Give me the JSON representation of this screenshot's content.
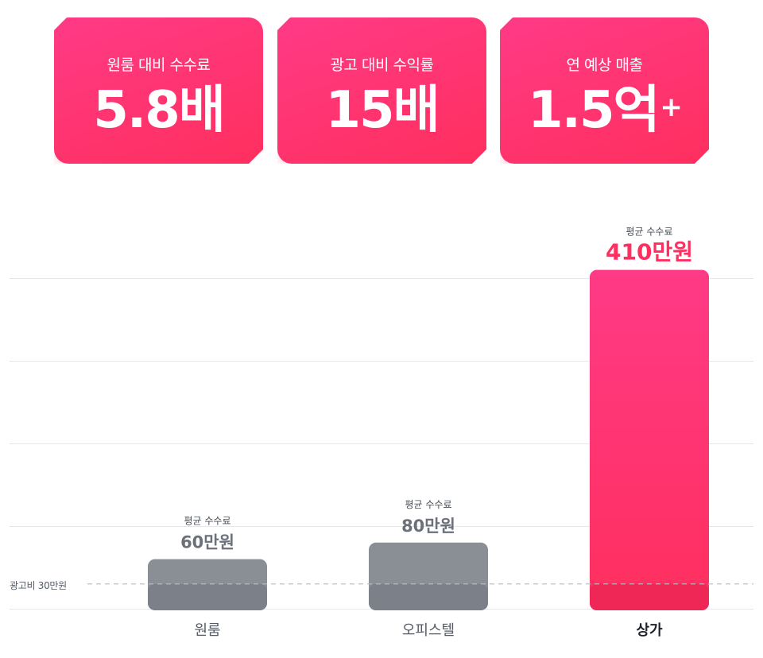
{
  "stat_cards": [
    {
      "label": "원룸 대비 수수료",
      "value": "5.8배",
      "sup": ""
    },
    {
      "label": "광고 대비 수익률",
      "value": "15배",
      "sup": ""
    },
    {
      "label": "연 예상 매출",
      "value": "1.5억",
      "sup": "+"
    }
  ],
  "colors": {
    "accent": "#ff2f60",
    "accent_top": "#ff3a86",
    "gray_bar": "#8a8f96",
    "gray_text": "#6b7079",
    "dark_text": "#1f2329"
  },
  "chart_data": {
    "type": "bar",
    "categories": [
      "원룸",
      "오피스텔",
      "상가"
    ],
    "values": [
      60,
      80,
      410
    ],
    "value_labels": [
      "60만원",
      "80만원",
      "410만원"
    ],
    "bar_caption": "평균 수수료",
    "highlight_index": 2,
    "reference_line": {
      "value": 30,
      "label": "광고비 30만원"
    },
    "ylim": [
      0,
      420
    ],
    "grid": true
  }
}
